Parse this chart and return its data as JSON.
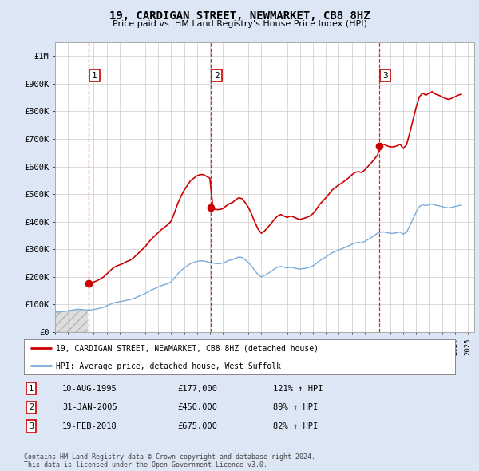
{
  "title": "19, CARDIGAN STREET, NEWMARKET, CB8 8HZ",
  "subtitle": "Price paid vs. HM Land Registry's House Price Index (HPI)",
  "property_label": "19, CARDIGAN STREET, NEWMARKET, CB8 8HZ (detached house)",
  "hpi_label": "HPI: Average price, detached house, West Suffolk",
  "footer": "Contains HM Land Registry data © Crown copyright and database right 2024.\nThis data is licensed under the Open Government Licence v3.0.",
  "transactions": [
    {
      "num": 1,
      "date": "10-AUG-1995",
      "year": 1995.61,
      "price": 177000,
      "hpi_pct": "121% ↑ HPI"
    },
    {
      "num": 2,
      "date": "31-JAN-2005",
      "year": 2005.08,
      "price": 450000,
      "hpi_pct": "89% ↑ HPI"
    },
    {
      "num": 3,
      "date": "19-FEB-2018",
      "year": 2018.13,
      "price": 675000,
      "hpi_pct": "82% ↑ HPI"
    }
  ],
  "hpi_line_color": "#7aabdb",
  "property_line_color": "#cc0000",
  "dot_color": "#cc0000",
  "annotation_box_color": "#cc0000",
  "dashed_line_color": "#cc0000",
  "ylim": [
    0,
    1050000
  ],
  "yticks": [
    0,
    100000,
    200000,
    300000,
    400000,
    500000,
    600000,
    700000,
    800000,
    900000,
    1000000
  ],
  "ytick_labels": [
    "£0",
    "£100K",
    "£200K",
    "£300K",
    "£400K",
    "£500K",
    "£600K",
    "£700K",
    "£800K",
    "£900K",
    "£1M"
  ],
  "xlim_start": 1993.0,
  "xlim_end": 2025.5,
  "xticks": [
    1993,
    1994,
    1995,
    1996,
    1997,
    1998,
    1999,
    2000,
    2001,
    2002,
    2003,
    2004,
    2005,
    2006,
    2007,
    2008,
    2009,
    2010,
    2011,
    2012,
    2013,
    2014,
    2015,
    2016,
    2017,
    2018,
    2019,
    2020,
    2021,
    2022,
    2023,
    2024,
    2025
  ],
  "hpi_data_x": [
    1993.0,
    1993.25,
    1993.5,
    1993.75,
    1994.0,
    1994.25,
    1994.5,
    1994.75,
    1995.0,
    1995.25,
    1995.5,
    1995.75,
    1996.0,
    1996.25,
    1996.5,
    1996.75,
    1997.0,
    1997.25,
    1997.5,
    1997.75,
    1998.0,
    1998.25,
    1998.5,
    1998.75,
    1999.0,
    1999.25,
    1999.5,
    1999.75,
    2000.0,
    2000.25,
    2000.5,
    2000.75,
    2001.0,
    2001.25,
    2001.5,
    2001.75,
    2002.0,
    2002.25,
    2002.5,
    2002.75,
    2003.0,
    2003.25,
    2003.5,
    2003.75,
    2004.0,
    2004.25,
    2004.5,
    2004.75,
    2005.0,
    2005.25,
    2005.5,
    2005.75,
    2006.0,
    2006.25,
    2006.5,
    2006.75,
    2007.0,
    2007.25,
    2007.5,
    2007.75,
    2008.0,
    2008.25,
    2008.5,
    2008.75,
    2009.0,
    2009.25,
    2009.5,
    2009.75,
    2010.0,
    2010.25,
    2010.5,
    2010.75,
    2011.0,
    2011.25,
    2011.5,
    2011.75,
    2012.0,
    2012.25,
    2012.5,
    2012.75,
    2013.0,
    2013.25,
    2013.5,
    2013.75,
    2014.0,
    2014.25,
    2014.5,
    2014.75,
    2015.0,
    2015.25,
    2015.5,
    2015.75,
    2016.0,
    2016.25,
    2016.5,
    2016.75,
    2017.0,
    2017.25,
    2017.5,
    2017.75,
    2018.0,
    2018.25,
    2018.5,
    2018.75,
    2019.0,
    2019.25,
    2019.5,
    2019.75,
    2020.0,
    2020.25,
    2020.5,
    2020.75,
    2021.0,
    2021.25,
    2021.5,
    2021.75,
    2022.0,
    2022.25,
    2022.5,
    2022.75,
    2023.0,
    2023.25,
    2023.5,
    2023.75,
    2024.0,
    2024.25,
    2024.5
  ],
  "hpi_data_y": [
    72000,
    73000,
    74000,
    75000,
    77000,
    79000,
    81000,
    83000,
    82000,
    81000,
    80000,
    80000,
    82000,
    84000,
    87000,
    90000,
    95000,
    100000,
    105000,
    108000,
    110000,
    112000,
    115000,
    117000,
    120000,
    125000,
    130000,
    135000,
    140000,
    147000,
    153000,
    158000,
    163000,
    168000,
    172000,
    176000,
    182000,
    195000,
    210000,
    222000,
    232000,
    240000,
    248000,
    252000,
    256000,
    258000,
    258000,
    255000,
    252000,
    250000,
    248000,
    248000,
    250000,
    255000,
    260000,
    262000,
    268000,
    272000,
    270000,
    262000,
    252000,
    238000,
    222000,
    208000,
    200000,
    205000,
    212000,
    220000,
    228000,
    235000,
    238000,
    235000,
    232000,
    235000,
    233000,
    230000,
    228000,
    230000,
    232000,
    235000,
    240000,
    248000,
    258000,
    265000,
    272000,
    280000,
    288000,
    293000,
    298000,
    302000,
    307000,
    312000,
    318000,
    323000,
    325000,
    323000,
    328000,
    335000,
    342000,
    350000,
    358000,
    362000,
    363000,
    360000,
    358000,
    358000,
    360000,
    363000,
    355000,
    362000,
    385000,
    410000,
    435000,
    455000,
    462000,
    458000,
    462000,
    465000,
    460000,
    458000,
    455000,
    452000,
    450000,
    452000,
    455000,
    458000,
    460000
  ],
  "bg_color": "#dce6f5",
  "plot_bg": "#ffffff",
  "grid_color": "#cccccc",
  "legend_border_color": "#888888",
  "title_fontsize": 10,
  "subtitle_fontsize": 8
}
